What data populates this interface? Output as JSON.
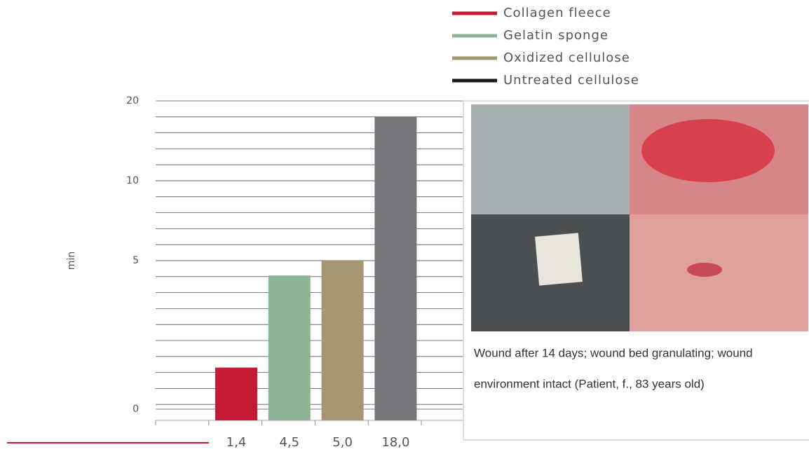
{
  "chart_data": {
    "type": "bar",
    "categories": [
      "Collagen fleece",
      "Gelatin sponge",
      "Oxidized cellulose",
      "Untreated cellulose"
    ],
    "colors": [
      "#c41a35",
      "#8db396",
      "#a69770",
      "#1a1a1a"
    ],
    "bar_colors": [
      "#c41a35",
      "#8db396",
      "#a69770",
      "#76767a"
    ],
    "values": [
      1.4,
      4.5,
      5.0,
      18.0
    ],
    "value_labels": [
      "1,4",
      "4,5",
      "5,0",
      "18,0"
    ],
    "ylabel": "min",
    "ylim": [
      0,
      20
    ],
    "yticks": [
      0,
      5,
      10,
      20
    ],
    "grid": true,
    "caption": [
      "Wound after 14 days; wound bed granulating; wound",
      "environment intact (Patient, f., 83 years old)"
    ]
  }
}
